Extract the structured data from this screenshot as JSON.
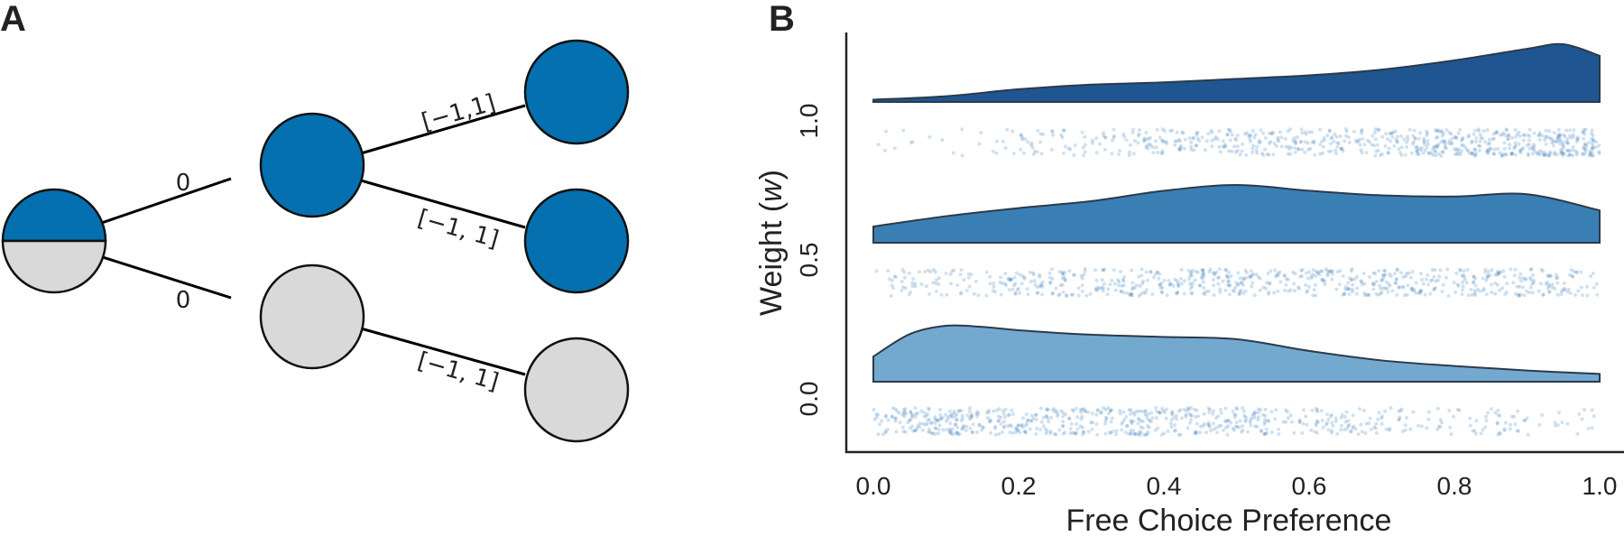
{
  "panel_a": {
    "letter": "A",
    "colors": {
      "chosen": "#0570b0",
      "unchosen": "#d9d9d9",
      "stroke": "#000000"
    },
    "edges": [
      {
        "id": "root-to-top",
        "label": "0"
      },
      {
        "id": "root-to-bottom",
        "label": "0"
      },
      {
        "id": "top-to-leaf1",
        "label": "[−1,1]"
      },
      {
        "id": "top-to-leaf2",
        "label": "[−1, 1]"
      },
      {
        "id": "bottom-to-leaf3",
        "label": "[−1, 1]"
      }
    ]
  },
  "panel_b": {
    "letter": "B"
  },
  "chart_data": {
    "type": "raincloud",
    "orientation": "horizontal",
    "xlabel": "Free Choice Preference",
    "ylabel_prefix": "Weight (",
    "ylabel_var": "w",
    "ylabel_suffix": ")",
    "xlim": [
      0.0,
      1.0
    ],
    "xticks": [
      "0.0",
      "0.2",
      "0.4",
      "0.6",
      "0.8",
      "1.0"
    ],
    "xtick_values": [
      0.0,
      0.2,
      0.4,
      0.6,
      0.8,
      1.0
    ],
    "yticks": [
      "0.0",
      "0.5",
      "1.0"
    ],
    "jitter_points_per_group": 700,
    "series": [
      {
        "name": "0.0",
        "color": "#74a9cf",
        "density_x": [
          0.0,
          0.05,
          0.1,
          0.15,
          0.2,
          0.3,
          0.4,
          0.5,
          0.6,
          0.7,
          0.8,
          0.9,
          1.0
        ],
        "density_y": [
          0.45,
          0.85,
          1.0,
          0.98,
          0.92,
          0.84,
          0.8,
          0.76,
          0.55,
          0.38,
          0.28,
          0.2,
          0.14
        ]
      },
      {
        "name": "0.5",
        "color": "#3a7fb4",
        "density_x": [
          0.0,
          0.1,
          0.2,
          0.3,
          0.4,
          0.5,
          0.6,
          0.7,
          0.8,
          0.9,
          1.0
        ],
        "density_y": [
          0.28,
          0.46,
          0.6,
          0.72,
          0.9,
          1.0,
          0.9,
          0.82,
          0.8,
          0.84,
          0.56
        ]
      },
      {
        "name": "1.0",
        "color": "#1f5591",
        "density_x": [
          0.0,
          0.1,
          0.2,
          0.3,
          0.4,
          0.5,
          0.6,
          0.7,
          0.8,
          0.9,
          0.95,
          1.0
        ],
        "density_y": [
          0.04,
          0.1,
          0.22,
          0.3,
          0.34,
          0.4,
          0.46,
          0.56,
          0.72,
          0.92,
          1.0,
          0.8
        ]
      }
    ]
  }
}
